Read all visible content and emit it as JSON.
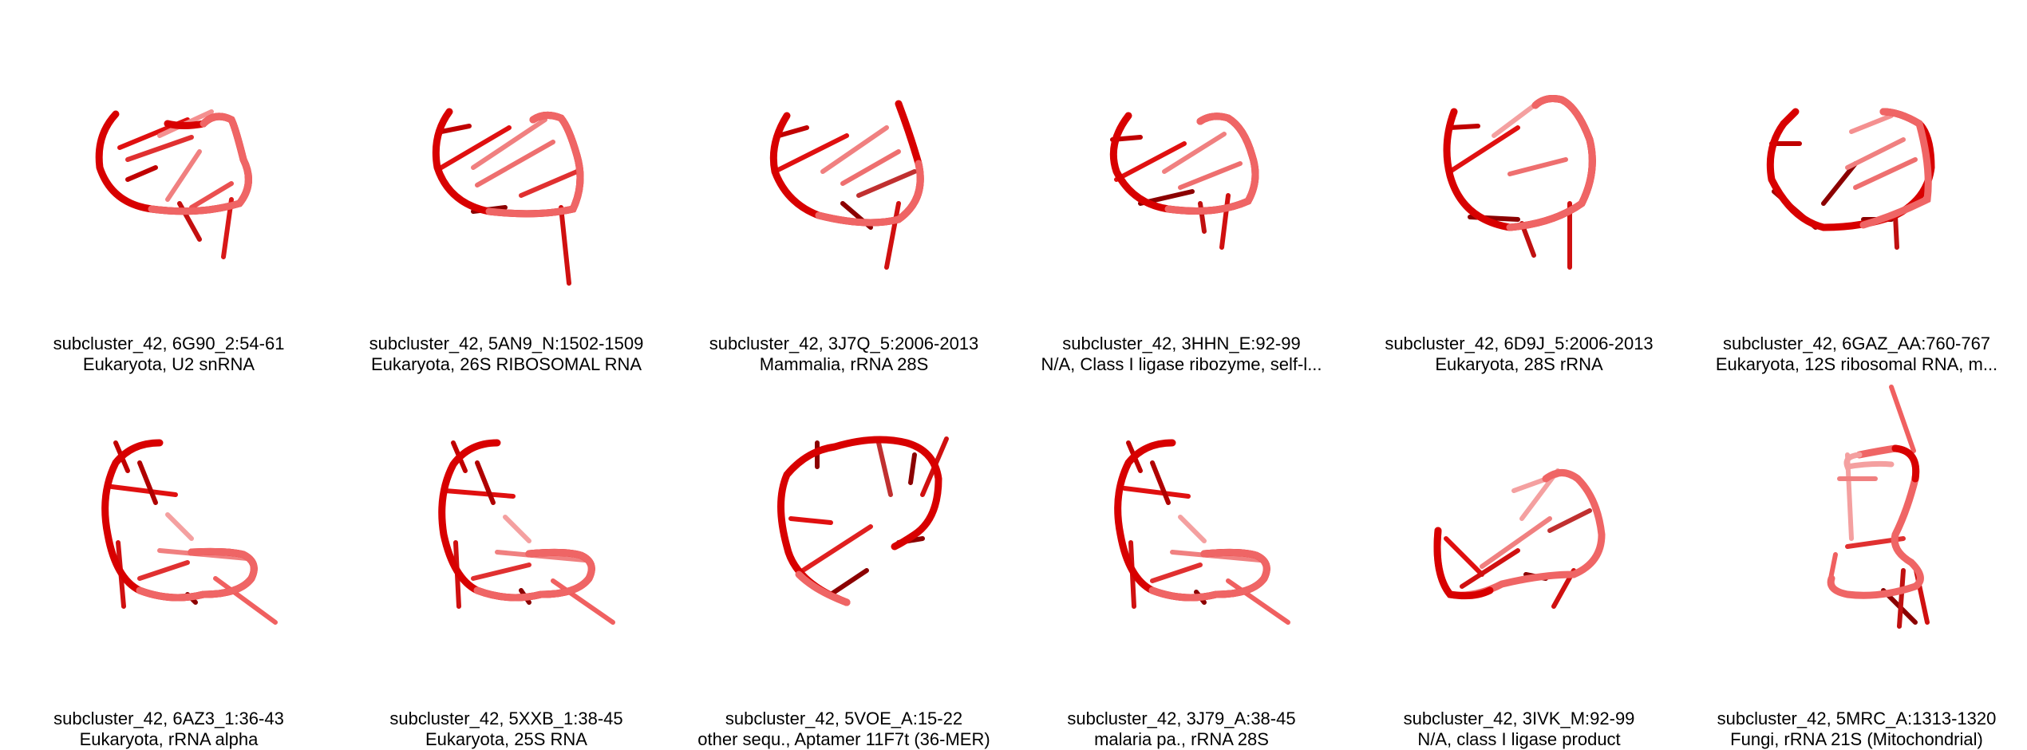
{
  "panels": [
    {
      "line1": "subcluster_42, 6G90_2:54-61",
      "line2": "Eukaryota, U2 snRNA"
    },
    {
      "line1": "subcluster_42, 5AN9_N:1502-1509",
      "line2": "Eukaryota, 26S RIBOSOMAL RNA"
    },
    {
      "line1": "subcluster_42, 3J7Q_5:2006-2013",
      "line2": "Mammalia, rRNA 28S"
    },
    {
      "line1": "subcluster_42, 3HHN_E:92-99",
      "line2": "N/A, Class I ligase ribozyme, self-l..."
    },
    {
      "line1": "subcluster_42, 6D9J_5:2006-2013",
      "line2": "Eukaryota, 28S rRNA"
    },
    {
      "line1": "subcluster_42, 6GAZ_AA:760-767",
      "line2": "Eukaryota, 12S ribosomal RNA, m..."
    },
    {
      "line1": "subcluster_42, 6AZ3_1:36-43",
      "line2": "Eukaryota, rRNA alpha"
    },
    {
      "line1": "subcluster_42, 5XXB_1:38-45",
      "line2": "Eukaryota, 25S RNA"
    },
    {
      "line1": "subcluster_42, 5VOE_A:15-22",
      "line2": "other sequ., Aptamer 11F7t (36-MER)"
    },
    {
      "line1": "subcluster_42, 3J79_A:38-45",
      "line2": "malaria pa., rRNA 28S"
    },
    {
      "line1": "subcluster_42, 3IVK_M:92-99",
      "line2": "N/A, class I ligase product"
    },
    {
      "line1": "subcluster_42, 5MRC_A:1313-1320",
      "line2": "Fungi, rRNA 21S (Mitochondrial)"
    }
  ],
  "colors": {
    "backbone_dark": "#d40000",
    "backbone_light": "#f06a6a",
    "base": "#e02020",
    "base_dark": "#8b0000"
  }
}
